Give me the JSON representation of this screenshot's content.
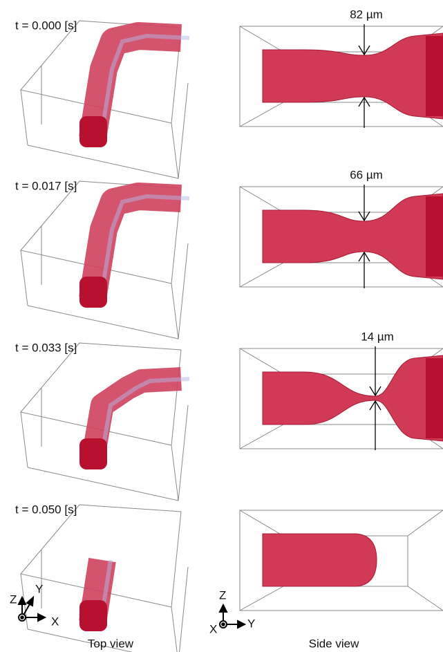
{
  "panels": [
    {
      "time": "t = 0.000 [s]",
      "width": "82 µm"
    },
    {
      "time": "t = 0.017 [s]",
      "width": "66 µm"
    },
    {
      "time": "t = 0.033 [s]",
      "width": "14 µm"
    },
    {
      "time": "t = 0.050 [s]"
    }
  ],
  "top_axes": {
    "z": "Z",
    "y": "Y",
    "x": "X"
  },
  "side_axes": {
    "z": "Z",
    "x": "X",
    "y": "Y"
  },
  "captions": {
    "top": "Top view",
    "side": "Side view"
  }
}
